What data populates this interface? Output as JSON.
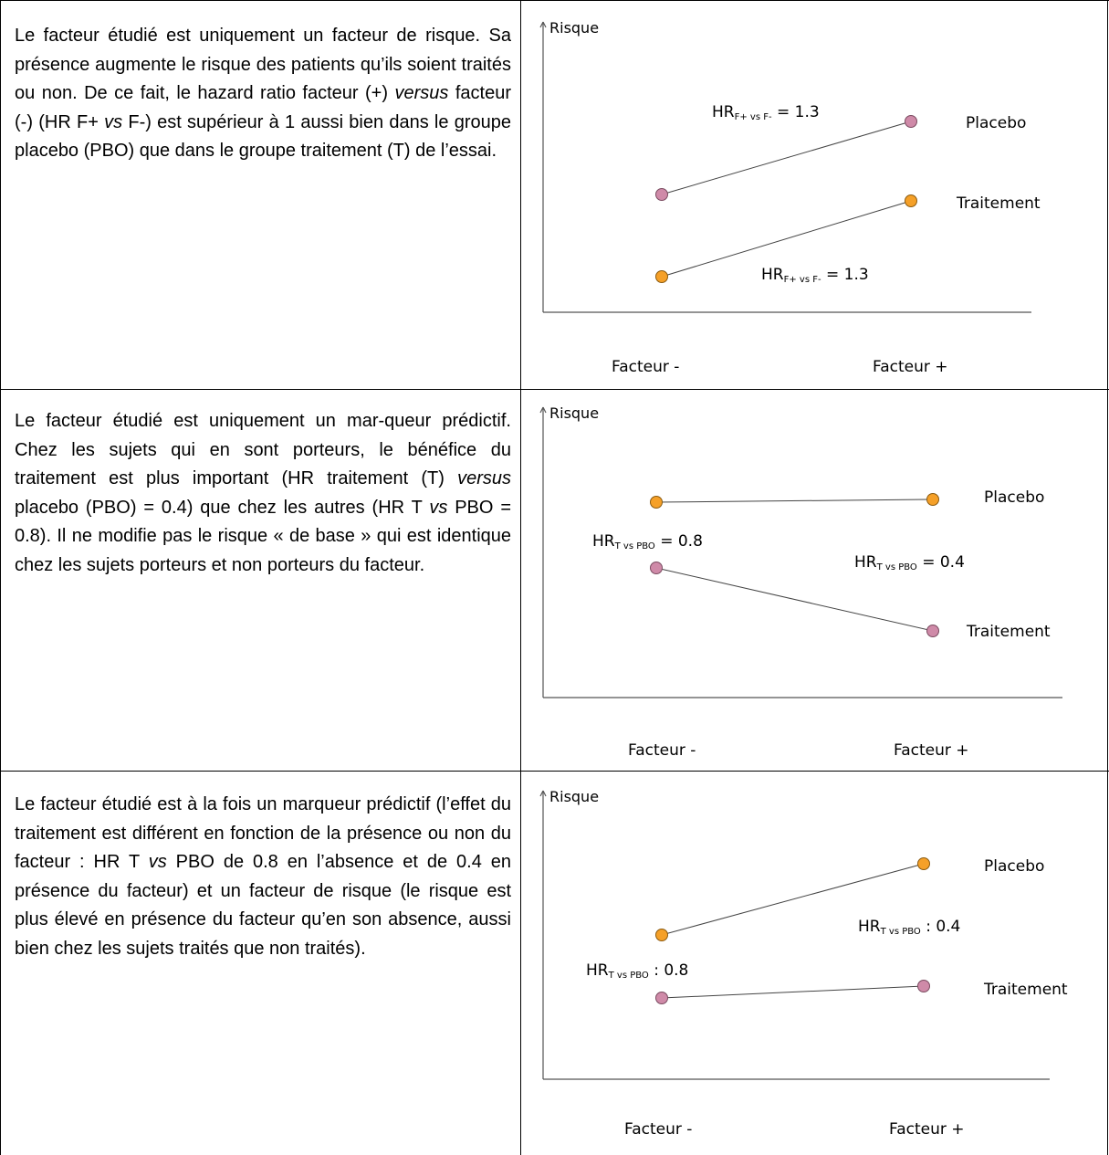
{
  "rows": [
    {
      "text": [
        {
          "t": "Le facteur étudié est uniquement un facteur de risque. Sa présence augmente le risque des patients qu’ils soient traités ou non. De ce fait, le hazard ratio facteur (+) "
        },
        {
          "t": "versus",
          "i": true
        },
        {
          "t": " facteur (-) (HR F+ "
        },
        {
          "t": "vs",
          "i": true
        },
        {
          "t": " F-) est supérieur à 1 aussi bien dans le groupe placebo (PBO) que dans le groupe traitement (T) de l’essai."
        }
      ]
    },
    {
      "text": [
        {
          "t": "Le facteur étudié est uniquement un mar-queur prédictif. Chez les sujets qui en sont porteurs, le bénéfice du traitement est plus important (HR traitement (T) "
        },
        {
          "t": "versus",
          "i": true
        },
        {
          "t": " placebo (PBO) = 0.4) que chez les autres (HR T "
        },
        {
          "t": "vs",
          "i": true
        },
        {
          "t": " PBO = 0.8). Il ne modifie pas le risque « de base » qui est identique chez les sujets porteurs et non porteurs du facteur."
        }
      ]
    },
    {
      "text": [
        {
          "t": "Le facteur étudié est à la fois un marqueur prédictif (l’effet du traitement est différent en fonction de la présence ou non du facteur : HR T "
        },
        {
          "t": "vs",
          "i": true
        },
        {
          "t": " PBO de 0.8 en l’absence et de 0.4 en présence du facteur) et un facteur de risque (le risque est plus élevé en présence du facteur qu’en son absence, aussi bien chez les sujets traités que non traités)."
        }
      ]
    }
  ],
  "colors": {
    "orange": "#f5a028",
    "pink": "#cf8aa8",
    "line": "#555555"
  },
  "chart_data": [
    {
      "type": "line",
      "ylabel": "Risque",
      "categories": [
        "Facteur -",
        "Facteur +"
      ],
      "series": [
        {
          "name": "Placebo",
          "values": [
            4.6,
            6.4
          ],
          "color": "pink"
        },
        {
          "name": "Traitement",
          "values": [
            2.0,
            3.8
          ],
          "color": "orange"
        }
      ],
      "annotations": [
        {
          "main": "HR",
          "sub": "F+ vs F-",
          "rest": " = 1.3",
          "near": "Placebo"
        },
        {
          "main": "HR",
          "sub": "F+ vs F-",
          "rest": " = 1.3",
          "near": "Traitement"
        }
      ]
    },
    {
      "type": "line",
      "ylabel": "Risque",
      "categories": [
        "Facteur -",
        "Facteur +"
      ],
      "series": [
        {
          "name": "Placebo",
          "values": [
            5.6,
            5.6
          ],
          "color": "orange"
        },
        {
          "name": "Traitement",
          "values": [
            3.6,
            1.8
          ],
          "color": "pink"
        }
      ],
      "annotations": [
        {
          "main": "HR",
          "sub": "T vs PBO",
          "rest": " = 0.8",
          "near": "Facteur -"
        },
        {
          "main": "HR",
          "sub": "T vs PBO",
          "rest": " = 0.4",
          "near": "Facteur +"
        }
      ]
    },
    {
      "type": "line",
      "ylabel": "Risque",
      "categories": [
        "Facteur -",
        "Facteur +"
      ],
      "series": [
        {
          "name": "Placebo",
          "values": [
            3.8,
            6.2
          ],
          "color": "orange"
        },
        {
          "name": "Traitement",
          "values": [
            1.8,
            2.2
          ],
          "color": "pink"
        }
      ],
      "annotations": [
        {
          "main": "HR",
          "sub": "T vs PBO",
          "rest": " : 0.4",
          "near": "Facteur +"
        },
        {
          "main": "HR",
          "sub": "T vs PBO",
          "rest": " : 0.8",
          "near": "Facteur -"
        }
      ]
    }
  ]
}
